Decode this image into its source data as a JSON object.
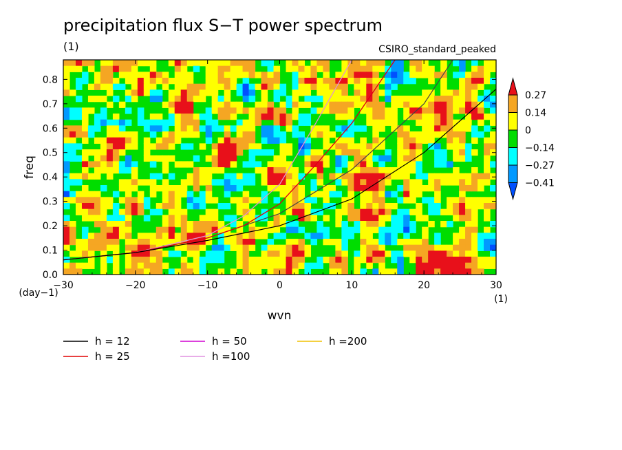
{
  "chart_data": {
    "type": "heatmap",
    "title": "precipitation flux S−T power spectrum",
    "subtitle": "(1)",
    "source_label": "CSIRO_standard_peaked",
    "xlabel": "wvn",
    "ylabel": "freq",
    "x_unit": "(1)",
    "y_unit": "(day−1)",
    "xlim": [
      -30,
      30
    ],
    "ylim": [
      0,
      0.88
    ],
    "xticks": [
      -30,
      -20,
      -10,
      0,
      10,
      20,
      30
    ],
    "xtick_labels": [
      "−30",
      "−20",
      "−10",
      "0",
      "10",
      "20",
      "30"
    ],
    "yticks": [
      0,
      0.1,
      0.2,
      0.3,
      0.4,
      0.5,
      0.6,
      0.7,
      0.8
    ],
    "ytick_labels": [
      "0.0",
      "0.1",
      "0.2",
      "0.3",
      "0.4",
      "0.5",
      "0.6",
      "0.7",
      "0.8"
    ],
    "colorbar": {
      "levels": [
        "0.27",
        "0.14",
        "0",
        "−0.14",
        "−0.27",
        "−0.41"
      ],
      "colors": [
        "#e8101a",
        "#f5a623",
        "#ffff00",
        "#00dd00",
        "#00ffff",
        "#0099ff",
        "#0050ff"
      ],
      "extend": "both"
    },
    "series": [
      {
        "name": "h = 12",
        "color": "#000000",
        "x": [
          -30,
          -20,
          -10,
          0,
          10,
          20,
          30
        ],
        "y": [
          0.06,
          0.09,
          0.14,
          0.2,
          0.31,
          0.5,
          0.76
        ]
      },
      {
        "name": "h = 25",
        "color": "#e00000",
        "x": [
          -30,
          -20,
          -10,
          -5,
          0,
          5,
          10,
          16
        ],
        "y": [
          0.06,
          0.09,
          0.15,
          0.2,
          0.29,
          0.45,
          0.62,
          0.88
        ]
      },
      {
        "name": "h = 50",
        "color": "#d000d0",
        "x": [
          -30,
          -20,
          -10,
          -5,
          0,
          5,
          10,
          16
        ],
        "y": [
          0.06,
          0.09,
          0.15,
          0.2,
          0.29,
          0.45,
          0.62,
          0.88
        ]
      },
      {
        "name": "h =100",
        "color": "#e090e0",
        "x": [
          -30,
          -20,
          -10,
          -5,
          0,
          5,
          10
        ],
        "y": [
          0.06,
          0.09,
          0.16,
          0.24,
          0.37,
          0.62,
          0.88
        ]
      },
      {
        "name": "h =200",
        "color": "#f0c000",
        "x": [
          -30,
          -20,
          -10,
          -5,
          0,
          5,
          10
        ],
        "y": [
          0.06,
          0.09,
          0.16,
          0.24,
          0.37,
          0.62,
          0.88
        ]
      }
    ],
    "extra_curve": {
      "color": "#444444",
      "x": [
        -30,
        -20,
        -10,
        0,
        10,
        20,
        24
      ],
      "y": [
        0.06,
        0.09,
        0.15,
        0.25,
        0.43,
        0.7,
        0.88
      ]
    },
    "legend_placement": "bottom-left",
    "grid": false,
    "noise_field_range": [
      -0.45,
      0.3
    ]
  }
}
